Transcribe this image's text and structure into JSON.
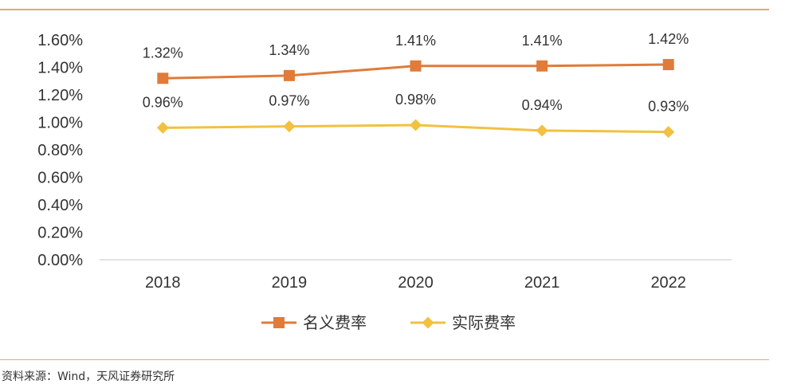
{
  "header": {
    "title": ""
  },
  "source": "资料来源：Wind，天风证券研究所",
  "chart_data": {
    "type": "line",
    "categories": [
      "2018",
      "2019",
      "2020",
      "2021",
      "2022"
    ],
    "ylim": [
      0,
      1.6
    ],
    "yticks": [
      "0.00%",
      "0.20%",
      "0.40%",
      "0.60%",
      "0.80%",
      "1.00%",
      "1.20%",
      "1.40%",
      "1.60%"
    ],
    "grid": false,
    "legend": "bottom",
    "series": [
      {
        "name": "名义费率",
        "values": [
          1.32,
          1.34,
          1.41,
          1.41,
          1.42
        ],
        "labels": [
          "1.32%",
          "1.34%",
          "1.41%",
          "1.41%",
          "1.42%"
        ],
        "color": "#e07b39",
        "marker": "square"
      },
      {
        "name": "实际费率",
        "values": [
          0.96,
          0.97,
          0.98,
          0.94,
          0.93
        ],
        "labels": [
          "0.96%",
          "0.97%",
          "0.98%",
          "0.94%",
          "0.93%"
        ],
        "color": "#f2c141",
        "marker": "diamond"
      }
    ]
  }
}
